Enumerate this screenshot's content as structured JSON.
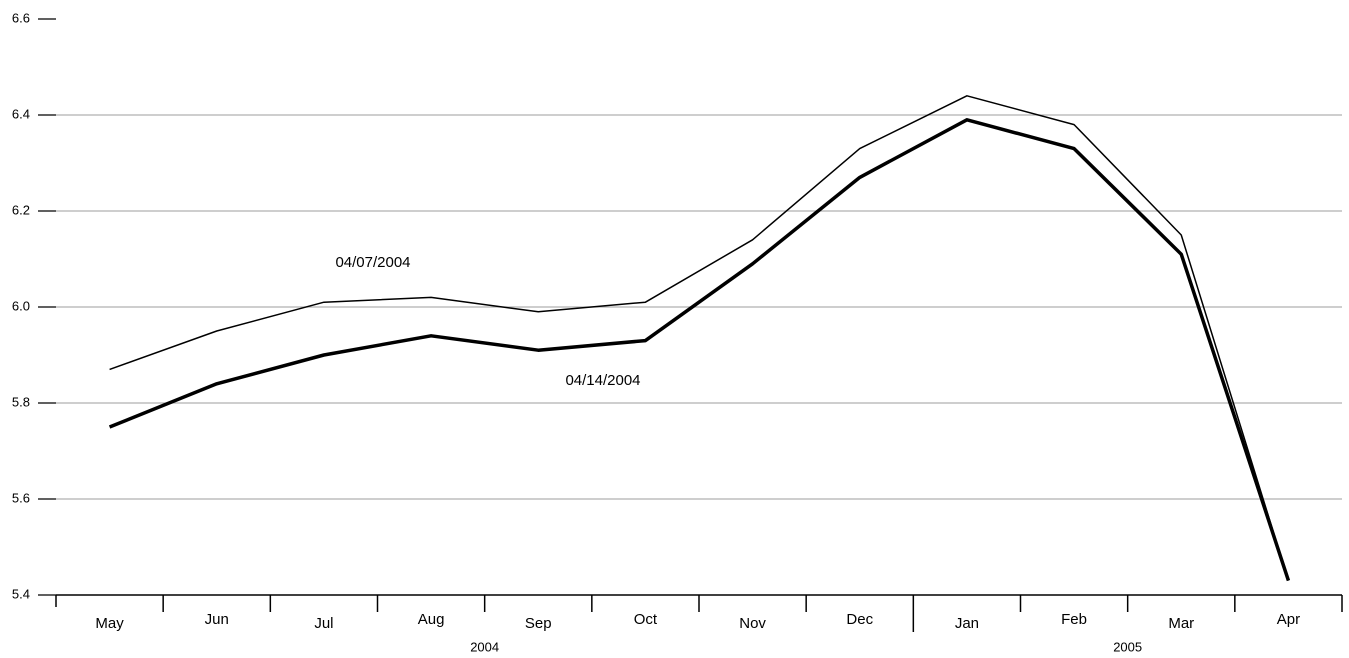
{
  "chart_data": {
    "type": "line",
    "categories": [
      "May",
      "Jun",
      "Jul",
      "Aug",
      "Sep",
      "Oct",
      "Nov",
      "Dec",
      "Jan",
      "Feb",
      "Mar",
      "Apr"
    ],
    "year_groups": [
      {
        "label": "2004",
        "start": "May",
        "end": "Dec"
      },
      {
        "label": "2005",
        "start": "Jan",
        "end": "Apr"
      }
    ],
    "series": [
      {
        "name": "04/07/2004",
        "color": "#000000",
        "values": [
          5.87,
          5.95,
          6.01,
          6.02,
          5.99,
          6.01,
          6.14,
          6.33,
          6.44,
          6.38,
          6.15,
          5.43
        ]
      },
      {
        "name": "04/14/2004",
        "color": "#000000",
        "values": [
          5.75,
          5.84,
          5.9,
          5.94,
          5.91,
          5.93,
          6.09,
          6.27,
          6.39,
          6.33,
          6.11,
          5.43
        ]
      }
    ],
    "ylim": [
      5.4,
      6.6
    ],
    "yticks": [
      {
        "value": 5.4,
        "label": "5.4"
      },
      {
        "value": 5.6,
        "label": "5.6"
      },
      {
        "value": 5.8,
        "label": "5.8"
      },
      {
        "value": 6,
        "label": "6.0"
      },
      {
        "value": 6.2,
        "label": "6.2"
      },
      {
        "value": 6.4,
        "label": "6.4"
      },
      {
        "value": 6.6,
        "label": "6.6"
      }
    ],
    "grid": true
  }
}
